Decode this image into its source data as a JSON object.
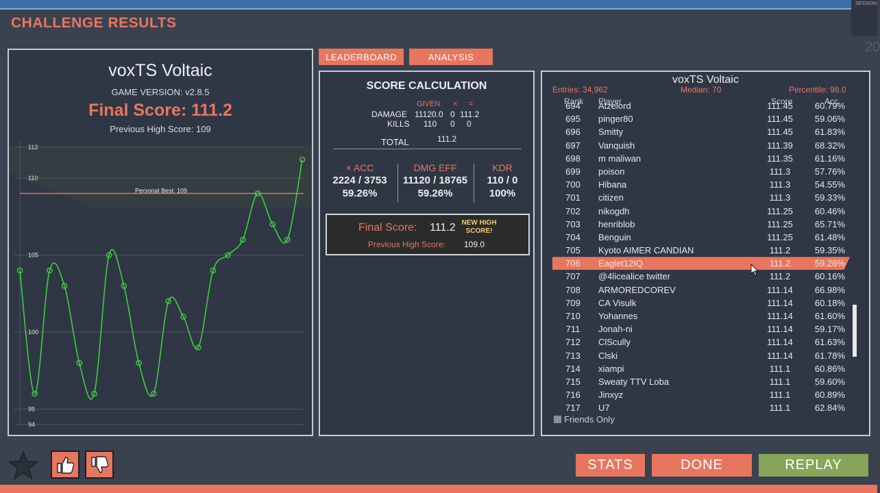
{
  "header": {
    "title": "CHALLENGE RESULTS",
    "session": "SESSION",
    "session_number": "20"
  },
  "left": {
    "scenario": "voxTS Voltaic",
    "game_version": "GAME VERSION: v2.8.5",
    "final_score": "Final Score: 111.2",
    "previous_high": "Previous High Score: 109"
  },
  "chart_data": {
    "type": "line",
    "x": [
      1,
      2,
      3,
      4,
      5,
      6,
      7,
      8,
      9,
      10,
      11,
      12,
      13,
      14,
      15,
      16,
      17,
      18,
      19,
      20
    ],
    "series": [
      {
        "values": [
          104,
          96,
          104,
          103,
          98,
          96,
          105,
          103,
          98,
          96,
          102,
          101,
          99,
          104,
          105,
          106,
          109,
          107,
          106,
          111.2
        ]
      }
    ],
    "ylim": [
      94,
      112
    ],
    "yticks": [
      94,
      95,
      100,
      105,
      110,
      112
    ],
    "reference_line": {
      "value": 109,
      "label": "Personal Best: 109"
    },
    "grid": true,
    "line_color": "#3ecf3e"
  },
  "tabs": {
    "leaderboard": "LEADERBOARD",
    "analysis": "ANALYSIS"
  },
  "score_calc": {
    "title": "SCORE CALCULATION",
    "given": "GIVEN",
    "times": "×",
    "equals": "=",
    "damage_label": "DAMAGE",
    "damage_given": "11120.0",
    "damage_mult": "0",
    "damage_total": "111.2",
    "kills_label": "KILLS",
    "kills_given": "110",
    "kills_mult": "0",
    "kills_total": "0",
    "total_label": "TOTAL",
    "total_value": "111.2",
    "acc_label": "× ACC",
    "acc_value": "2224 / 3753",
    "acc_pct": "59.26%",
    "dmg_label": "DMG EFF",
    "dmg_value": "11120 / 18765",
    "dmg_pct": "59.26%",
    "kdr_label": "KDR",
    "kdr_value": "110 / 0",
    "kdr_pct": "100%",
    "final_label": "Final Score:",
    "final_value": "111.2",
    "new_high": "NEW HIGH SCORE!",
    "prev_label": "Previous High Score:",
    "prev_value": "109.0"
  },
  "leaderboard": {
    "title": "voxTS Voltaic",
    "entries": "Entries: 34,962",
    "median": "Median: 70",
    "percentile": "Percentile: 98.0",
    "col_rank": "Rank",
    "col_player": "Player",
    "col_score": "Score",
    "col_acc": "Acc",
    "rows": [
      {
        "rank": "694",
        "player": "Atzelord",
        "score": "111.45",
        "acc": "60.79%"
      },
      {
        "rank": "695",
        "player": "pinger80",
        "score": "111.45",
        "acc": "59.06%"
      },
      {
        "rank": "696",
        "player": "Smitty",
        "score": "111.45",
        "acc": "61.83%"
      },
      {
        "rank": "697",
        "player": "Vanquish",
        "score": "111.39",
        "acc": "68.32%"
      },
      {
        "rank": "698",
        "player": "m maliwan",
        "score": "111.35",
        "acc": "61.16%"
      },
      {
        "rank": "699",
        "player": "poison",
        "score": "111.3",
        "acc": "57.76%"
      },
      {
        "rank": "700",
        "player": "Hibana",
        "score": "111.3",
        "acc": "54.55%"
      },
      {
        "rank": "701",
        "player": "citizen",
        "score": "111.3",
        "acc": "59.33%"
      },
      {
        "rank": "702",
        "player": "nikogdh",
        "score": "111.25",
        "acc": "60.46%"
      },
      {
        "rank": "703",
        "player": "henriblob",
        "score": "111.25",
        "acc": "65.71%"
      },
      {
        "rank": "704",
        "player": "Benguin",
        "score": "111.25",
        "acc": "61.48%"
      },
      {
        "rank": "705",
        "player": "Kyoto AIMER CANDIAN",
        "score": "111.2",
        "acc": "59.35%"
      },
      {
        "rank": "706",
        "player": "Eaglet12IQ",
        "score": "111.2",
        "acc": "59.26%",
        "highlight": true
      },
      {
        "rank": "707",
        "player": "@4licealice twitter",
        "score": "111.2",
        "acc": "60.16%"
      },
      {
        "rank": "708",
        "player": "ARMOREDCOREV",
        "score": "111.14",
        "acc": "66.98%"
      },
      {
        "rank": "709",
        "player": "CA Visulk",
        "score": "111.14",
        "acc": "60.18%"
      },
      {
        "rank": "710",
        "player": "Yohannes",
        "score": "111.14",
        "acc": "61.60%"
      },
      {
        "rank": "711",
        "player": "Jonah-ni",
        "score": "111.14",
        "acc": "59.17%"
      },
      {
        "rank": "712",
        "player": "ClScully",
        "score": "111.14",
        "acc": "61.63%"
      },
      {
        "rank": "713",
        "player": "Clski",
        "score": "111.14",
        "acc": "61.78%"
      },
      {
        "rank": "714",
        "player": "xiampi",
        "score": "111.1",
        "acc": "60.86%"
      },
      {
        "rank": "715",
        "player": "Sweaty TTV Loba",
        "score": "111.1",
        "acc": "59.60%"
      },
      {
        "rank": "716",
        "player": "Jinxyz",
        "score": "111.1",
        "acc": "60.89%"
      },
      {
        "rank": "717",
        "player": "U7",
        "score": "111.1",
        "acc": "62.84%"
      }
    ],
    "friends_only": "Friends Only"
  },
  "buttons": {
    "stats": "STATS",
    "done": "DONE",
    "replay": "REPLAY"
  },
  "colors": {
    "accent": "#e8765e",
    "replay": "#86a659",
    "line": "#3ecf3e"
  },
  "icons": {
    "star": "star-icon",
    "thumbs_up": "thumbs-up-icon",
    "thumbs_down": "thumbs-down-icon",
    "cursor": "mouse-cursor-icon"
  }
}
